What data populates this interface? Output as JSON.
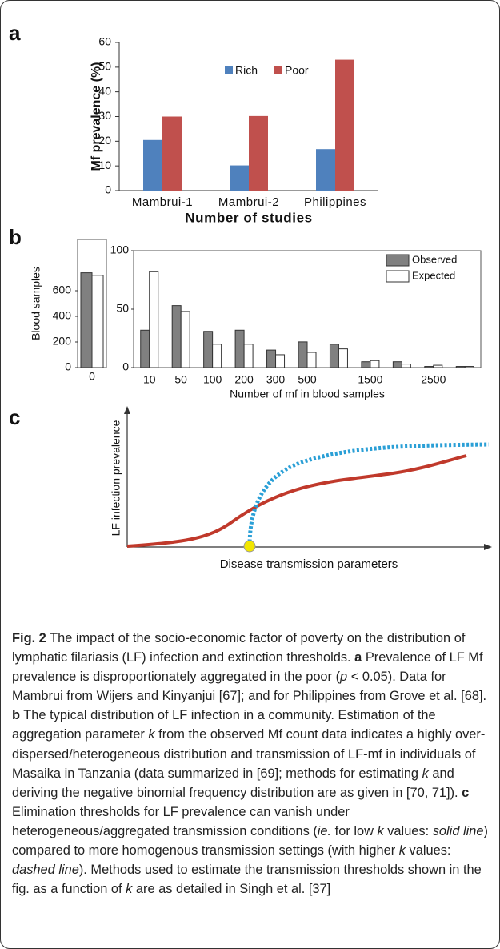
{
  "chart_data": [
    {
      "type": "bar",
      "panel": "a",
      "xlabel": "Number of studies",
      "ylabel": "Mf prevalence (%)",
      "categories": [
        "Mambrui-1",
        "Mambrui-2",
        "Philippines"
      ],
      "series": [
        {
          "name": "Rich",
          "color": "#4f81bd",
          "values": [
            20.5,
            10.2,
            16.8
          ]
        },
        {
          "name": "Poor",
          "color": "#c0504d",
          "values": [
            30,
            30.2,
            53
          ]
        }
      ],
      "ylim": [
        0,
        60
      ],
      "yticks": [
        0,
        10,
        20,
        30,
        40,
        50,
        60
      ],
      "legend": "top"
    },
    {
      "type": "bar",
      "panel": "b",
      "ylabel": "Blood samples",
      "categories": [
        "0"
      ],
      "series": [
        {
          "name": "Observed",
          "color": "#808080",
          "values": [
            740
          ]
        },
        {
          "name": "Expected",
          "color": "#ffffff",
          "values": [
            720
          ]
        }
      ],
      "ylim": [
        0,
        1000
      ],
      "yticks": [
        0,
        200,
        400,
        600
      ]
    },
    {
      "type": "bar",
      "xlabel": "Number of mf in blood samples",
      "categories": [
        "10",
        "50",
        "100",
        "200",
        "300",
        "500",
        null,
        "1500",
        null,
        "2500",
        null
      ],
      "series": [
        {
          "name": "Observed",
          "color": "#808080",
          "values": [
            32,
            53,
            31,
            32,
            15,
            22,
            20,
            5,
            5,
            1,
            1
          ]
        },
        {
          "name": "Expected",
          "color": "#ffffff",
          "values": [
            82,
            48,
            20,
            20,
            11,
            13,
            16,
            6,
            3,
            2,
            1
          ]
        }
      ],
      "ylim": [
        0,
        100
      ],
      "yticks": [
        0,
        50,
        100
      ],
      "legend": "upper right"
    },
    {
      "type": "line",
      "panel": "c",
      "xlabel": "Disease transmission parameters",
      "ylabel": "LF infection prevalence"
    }
  ],
  "caption": [
    "Fig. 2",
    " The impact of the socio-economic factor of poverty on the distribution of lymphatic filariasis (LF) infection and extinction thresholds. ",
    "a",
    " Prevalence of LF Mf prevalence is disproportionately aggregated in the poor (",
    "p",
    " < 0.05). Data for Mambrui from Wijers and Kinyanjui [67]; and for Philippines from Grove et al. [68]. ",
    "b",
    " The typical distribution of LF infection in a community. Estimation of the aggregation parameter ",
    "k",
    " from the observed Mf count data indicates a highly over-dispersed/heterogeneous distribution and transmission of LF-mf in individuals of Masaika in Tanzania (data summarized in [69]; methods for estimating ",
    "k",
    " and deriving the negative binomial frequency distribution are as given in [70, 71]). ",
    "c",
    " Elimination thresholds for LF prevalence can vanish under heterogeneous/aggregated transmission conditions (",
    "ie.",
    " for low ",
    "k",
    " values: ",
    "solid line",
    ") compared to more homogenous transmission settings (with higher ",
    "k",
    " values: ",
    "dashed line",
    "). Methods used to estimate the transmission thresholds shown in the fig. as a function of ",
    "k",
    " are as detailed in Singh et al. [37]"
  ]
}
